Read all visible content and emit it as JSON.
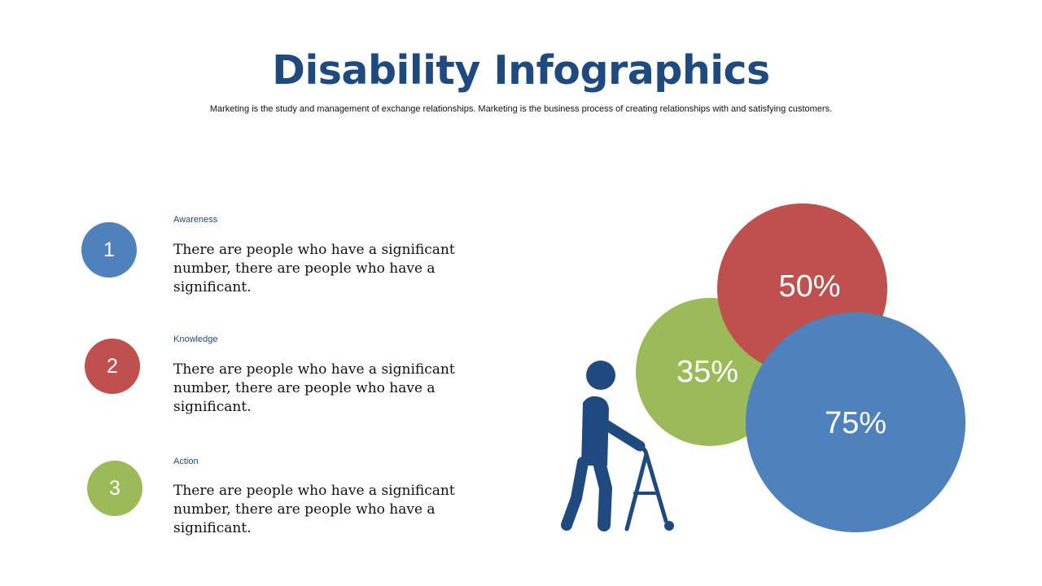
{
  "header": {
    "title": "Disability Infographics",
    "subtitle": "Marketing is the study and management of exchange relationships. Marketing is the business process of creating relationships with and satisfying customers."
  },
  "items": [
    {
      "number": "1",
      "label": "Awareness",
      "text": "There are people who have a significant number, there are people who have a significant.",
      "color": "#4f81bd"
    },
    {
      "number": "2",
      "label": "Knowledge",
      "text": "There are people who have a significant number, there are people who have a significant.",
      "color": "#c0504d"
    },
    {
      "number": "3",
      "label": "Action",
      "text": "There are people who have a significant number, there are people who have a significant.",
      "color": "#9bbb59"
    }
  ],
  "stats": [
    {
      "value": "50%",
      "color": "#c0504d"
    },
    {
      "value": "35%",
      "color": "#9bbb59"
    },
    {
      "value": "75%",
      "color": "#4f81bd"
    }
  ],
  "icon": {
    "name": "person-with-walker-icon",
    "color": "#1f4a7f"
  }
}
